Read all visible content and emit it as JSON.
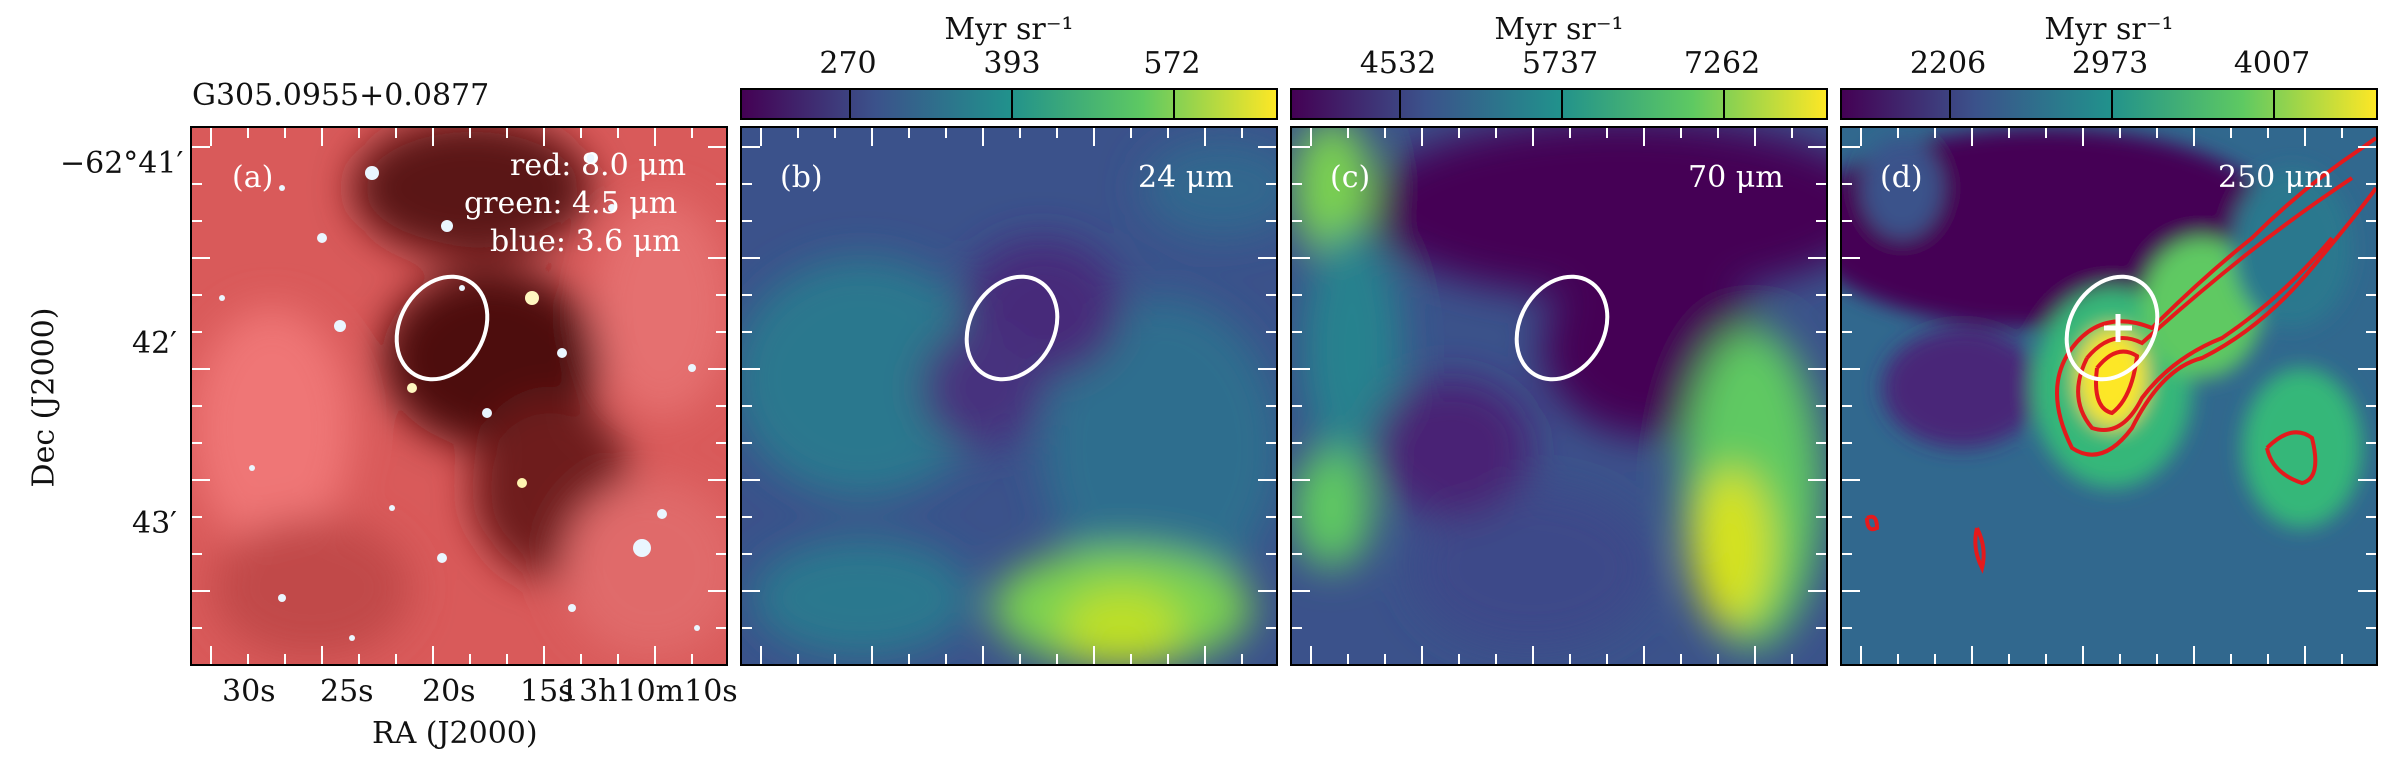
{
  "source_name": "G305.0955+0.0877",
  "unit_label": "Myr sr⁻¹",
  "colorbars": [
    {
      "ticks": [
        "270",
        "393",
        "572"
      ]
    },
    {
      "ticks": [
        "4532",
        "5737",
        "7262"
      ]
    },
    {
      "ticks": [
        "2206",
        "2973",
        "4007"
      ]
    }
  ],
  "panels": [
    {
      "letter": "(a)",
      "wavelength": "",
      "legend": [
        "red: 8.0 μm",
        "green: 4.5 μm",
        "blue: 3.6 μm"
      ]
    },
    {
      "letter": "(b)",
      "wavelength": "24 μm"
    },
    {
      "letter": "(c)",
      "wavelength": "70 μm"
    },
    {
      "letter": "(d)",
      "wavelength": "250 μm"
    }
  ],
  "axes": {
    "ylabel": "Dec (J2000)",
    "xlabel": "RA (J2000)",
    "yticks": [
      "−62°41′",
      "42′",
      "43′"
    ],
    "xticks": [
      "30s",
      "25s",
      "20s",
      "15s",
      "13h10m10s"
    ]
  },
  "colors": {
    "viridis_dark": "#440154",
    "viridis_mid": "#21918c",
    "viridis_bright": "#fde725",
    "contour": "#e41a1c",
    "rgb_base": "#d95a5a"
  }
}
